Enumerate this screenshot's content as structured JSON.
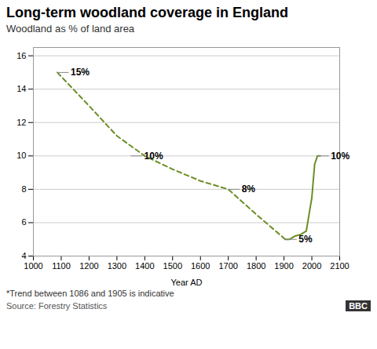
{
  "chart_data": {
    "type": "line",
    "title": "Long-term woodland coverage in England",
    "subtitle": "Woodland as % of land area",
    "xlabel": "Year AD",
    "footnote": "*Trend between 1086 and 1905 is indicative",
    "source": "Source: Forestry Statistics",
    "logo": "BBC",
    "series": [
      {
        "x": [
          1086,
          1200,
          1300,
          1400,
          1500,
          1600,
          1700,
          1800,
          1905
        ],
        "values": [
          15,
          13.0,
          11.2,
          10.0,
          9.2,
          8.5,
          8.0,
          6.5,
          5.0
        ],
        "color": "#6b8e23",
        "line_style": "dashed"
      },
      {
        "x": [
          1905,
          1920,
          1940,
          1960,
          1980,
          2000,
          2010,
          2020,
          2030
        ],
        "values": [
          5.0,
          5.0,
          5.2,
          5.3,
          5.5,
          7.5,
          9.5,
          10.0,
          10.0
        ],
        "color": "#6b8e23",
        "line_style": "solid"
      }
    ],
    "annotations": [
      {
        "x": 1086,
        "y": 15,
        "label": "15%"
      },
      {
        "x": 1350,
        "y": 10.0,
        "label": "10%"
      },
      {
        "x": 1700,
        "y": 8.0,
        "label": "8%"
      },
      {
        "x": 1905,
        "y": 5.0,
        "label": "5%"
      },
      {
        "x": 2020,
        "y": 10.0,
        "label": "10%"
      }
    ],
    "xlim": [
      1000,
      2100
    ],
    "ylim": [
      4,
      16.5
    ],
    "xticks": [
      1000,
      1100,
      1200,
      1300,
      1400,
      1500,
      1600,
      1700,
      1800,
      1900,
      2000,
      2100
    ],
    "yticks": [
      4,
      6,
      8,
      10,
      12,
      14,
      16
    ],
    "grid": true
  }
}
